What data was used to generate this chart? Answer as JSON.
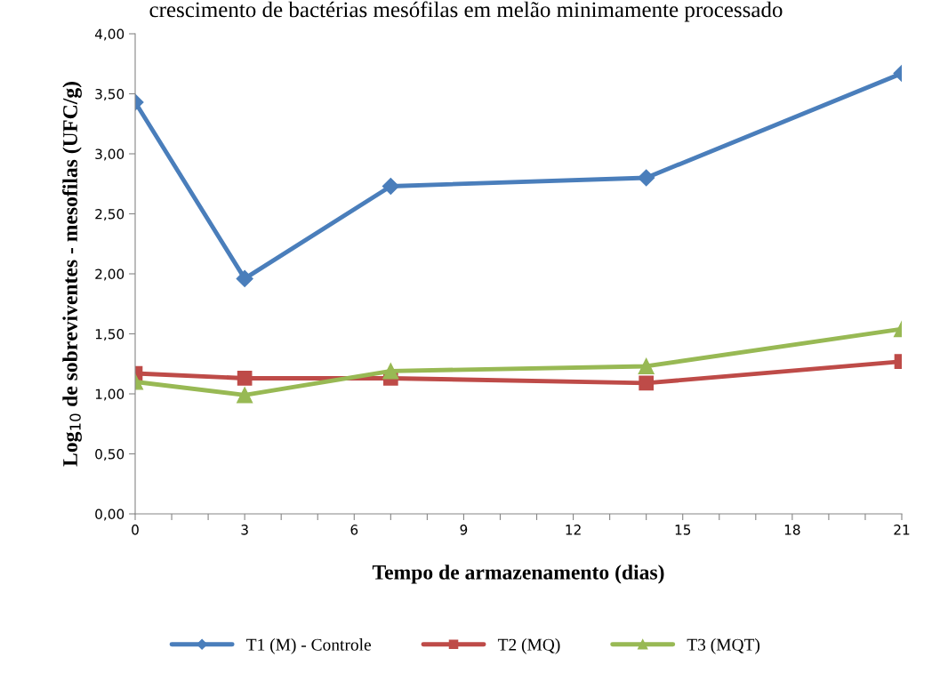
{
  "chart_data": {
    "type": "line",
    "title": "crescimento de bactérias mesófilas em melão minimamente processado",
    "xlabel": "Tempo de armazenamento (dias)",
    "ylabel": "Log$_{10}$ de sobreviventes - mesofilas (UFC/g)",
    "x": [
      0,
      3,
      7,
      14,
      21
    ],
    "series": [
      {
        "name": "T1 (M) - Controle",
        "color": "#4a7ebb",
        "values": [
          3.43,
          1.96,
          2.73,
          2.8,
          3.67
        ],
        "marker": "diamond"
      },
      {
        "name": "T2 (MQ)",
        "color": "#be4b48",
        "values": [
          1.17,
          1.13,
          1.13,
          1.09,
          1.27
        ],
        "marker": "square"
      },
      {
        "name": "T3 (MQT)",
        "color": "#98b954",
        "values": [
          1.1,
          0.99,
          1.19,
          1.23,
          1.54
        ],
        "marker": "triangle"
      }
    ],
    "xlim": [
      0,
      21
    ],
    "xticks": [
      0,
      {
        "value": 1,
        "label": null
      },
      {
        "value": 2,
        "label": null
      },
      3,
      {
        "value": 4,
        "label": null
      },
      {
        "value": 5,
        "label": null
      },
      6,
      {
        "value": 7,
        "label": null
      },
      {
        "value": 8,
        "label": null
      },
      9,
      {
        "value": 10,
        "label": null
      },
      {
        "value": 11,
        "label": null
      },
      12,
      {
        "value": 13,
        "label": null
      },
      {
        "value": 14,
        "label": null
      },
      15,
      {
        "value": 16,
        "label": null
      },
      {
        "value": 17,
        "label": null
      },
      18,
      {
        "value": 19,
        "label": null
      },
      {
        "value": 20,
        "label": null
      },
      21
    ],
    "ylim": [
      0,
      4
    ],
    "yticks": [
      {
        "value": 0,
        "label": "0,00"
      },
      {
        "value": 0.5,
        "label": "0,50"
      },
      {
        "value": 1,
        "label": "1,00"
      },
      {
        "value": 1.5,
        "label": "1,50"
      },
      {
        "value": 2,
        "label": "2,00"
      },
      {
        "value": 2.5,
        "label": "2,50"
      },
      {
        "value": 3,
        "label": "3,00"
      },
      {
        "value": 3.5,
        "label": "3,50"
      },
      {
        "value": 4,
        "label": "4,00"
      }
    ],
    "grid": false,
    "legend": "bottom",
    "line_style": "solid"
  }
}
